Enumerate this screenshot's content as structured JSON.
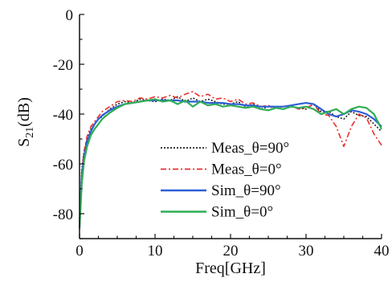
{
  "chart_data": {
    "type": "line",
    "xlabel": "Freq[GHz]",
    "ylabel": {
      "base": "S",
      "sub": "21",
      "suffix": "(dB)"
    },
    "xlim": [
      0,
      40
    ],
    "ylim": [
      -90,
      0
    ],
    "xticks": [
      0,
      10,
      20,
      30,
      40
    ],
    "yticks": [
      0,
      -20,
      -40,
      -60,
      -80
    ],
    "grid": false,
    "legend_position": "bottom-center",
    "series": [
      {
        "name": "Meas_θ=90°",
        "color": "#222222",
        "style": "dotted",
        "x": [
          0,
          0.3,
          0.6,
          1,
          1.5,
          2,
          2.5,
          3,
          4,
          5,
          6,
          7,
          8,
          9,
          10,
          11,
          12,
          13,
          14,
          15,
          16,
          17,
          18,
          19,
          20,
          21,
          22,
          23,
          24,
          25,
          26,
          27,
          28,
          29,
          30,
          31,
          32,
          33,
          34,
          35,
          36,
          37,
          38,
          39,
          40
        ],
        "y": [
          -82,
          -62,
          -55,
          -50,
          -46,
          -44,
          -42,
          -41,
          -38,
          -36,
          -35,
          -35.5,
          -34,
          -34.5,
          -35,
          -34,
          -34.5,
          -33,
          -35,
          -33.5,
          -35,
          -34,
          -35,
          -36,
          -36,
          -35,
          -37,
          -36,
          -38,
          -37,
          -37.5,
          -38,
          -37,
          -37.5,
          -38,
          -36,
          -39,
          -39,
          -41,
          -42,
          -39,
          -40.5,
          -41,
          -44,
          -47
        ]
      },
      {
        "name": "Meas_θ=0°",
        "color": "#e8312f",
        "style": "dashdot",
        "x": [
          0,
          0.3,
          0.6,
          1,
          1.5,
          2,
          2.5,
          3,
          4,
          5,
          6,
          7,
          8,
          9,
          10,
          11,
          12,
          13,
          14,
          15,
          16,
          17,
          18,
          19,
          20,
          21,
          22,
          23,
          24,
          25,
          26,
          27,
          28,
          29,
          30,
          31,
          32,
          33,
          34,
          35,
          36,
          37,
          38,
          39,
          40
        ],
        "y": [
          -84,
          -63,
          -55,
          -49,
          -45,
          -43,
          -41,
          -39,
          -37,
          -35,
          -34.5,
          -35,
          -33.5,
          -34,
          -33,
          -33.5,
          -32.5,
          -33.5,
          -32,
          -31,
          -33,
          -32,
          -34,
          -33.5,
          -35,
          -34,
          -36,
          -35.5,
          -37,
          -36.5,
          -37.5,
          -37,
          -36.5,
          -38,
          -37.5,
          -36,
          -40,
          -40.5,
          -45,
          -53,
          -45,
          -40,
          -41.5,
          -48,
          -52.5
        ]
      },
      {
        "name": "Sim_θ=90°",
        "color": "#2f5fd6",
        "style": "solid",
        "x": [
          0,
          0.3,
          0.6,
          1,
          1.5,
          2,
          2.5,
          3,
          4,
          5,
          6,
          7,
          8,
          9,
          10,
          11,
          12,
          13,
          14,
          15,
          16,
          17,
          18,
          19,
          20,
          21,
          22,
          23,
          24,
          25,
          26,
          27,
          28,
          29,
          30,
          31,
          32,
          33,
          34,
          35,
          36,
          37,
          38,
          39,
          40
        ],
        "y": [
          -85,
          -65,
          -57,
          -51,
          -47,
          -44,
          -42,
          -40.5,
          -38.5,
          -37,
          -36,
          -35.5,
          -35,
          -34.5,
          -34.5,
          -34.5,
          -34.5,
          -34.5,
          -35,
          -35,
          -35,
          -35.5,
          -35.5,
          -35.5,
          -36,
          -36,
          -36.5,
          -36.5,
          -37,
          -37,
          -37,
          -37,
          -36.5,
          -36,
          -35.5,
          -36,
          -38,
          -40,
          -41,
          -40,
          -38.5,
          -39,
          -40,
          -42,
          -45
        ]
      },
      {
        "name": "Sim_θ=0°",
        "color": "#2fae55",
        "style": "solid",
        "x": [
          0,
          0.3,
          0.6,
          1,
          1.5,
          2,
          2.5,
          3,
          4,
          5,
          6,
          7,
          8,
          9,
          10,
          11,
          12,
          13,
          14,
          15,
          16,
          17,
          18,
          19,
          20,
          21,
          22,
          23,
          24,
          25,
          26,
          27,
          28,
          29,
          30,
          31,
          32,
          33,
          34,
          35,
          36,
          37,
          38,
          39,
          40
        ],
        "y": [
          -86,
          -68,
          -59,
          -53,
          -48.5,
          -46,
          -44,
          -42,
          -39.5,
          -37.5,
          -36,
          -35.5,
          -35,
          -34.5,
          -34,
          -35,
          -34.5,
          -36,
          -34.5,
          -37,
          -35,
          -36.5,
          -36,
          -37,
          -36.5,
          -37,
          -37.5,
          -37,
          -38,
          -38.5,
          -37.5,
          -38,
          -37,
          -37.5,
          -37,
          -38,
          -40,
          -39,
          -38,
          -40,
          -38,
          -37,
          -37.5,
          -40,
          -46
        ]
      }
    ]
  }
}
